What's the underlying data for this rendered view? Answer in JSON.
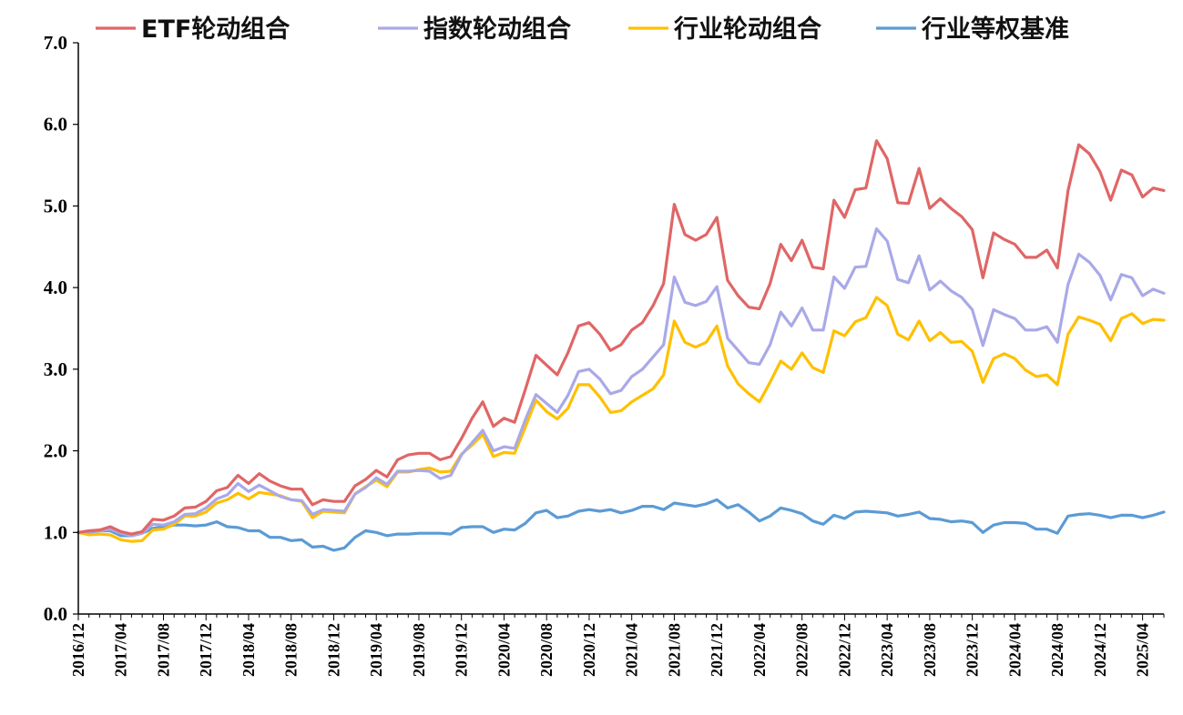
{
  "chart_data": {
    "type": "line",
    "title": "",
    "xlabel": "",
    "ylabel": "",
    "ylim": [
      0,
      7
    ],
    "yticks": [
      "0.0",
      "1.0",
      "2.0",
      "3.0",
      "4.0",
      "5.0",
      "6.0",
      "7.0"
    ],
    "grid": false,
    "legend_position": "top",
    "xtick_labels": [
      "2016/12",
      "2017/04",
      "2017/08",
      "2017/12",
      "2018/04",
      "2018/08",
      "2018/12",
      "2019/04",
      "2019/08",
      "2019/12",
      "2020/04",
      "2020/08",
      "2020/12",
      "2021/04",
      "2021/08",
      "2021/12",
      "2022/04",
      "2022/08",
      "2022/12",
      "2023/04",
      "2023/08",
      "2023/12",
      "2024/04",
      "2024/08",
      "2024/12",
      "2025/04"
    ],
    "x_start": "2016/12",
    "x_step": "1 month",
    "series": [
      {
        "name": "ETF轮动组合",
        "color": "#e06666",
        "values": [
          1.0,
          1.02,
          1.03,
          1.07,
          1.01,
          0.98,
          1.01,
          1.16,
          1.15,
          1.2,
          1.3,
          1.31,
          1.38,
          1.51,
          1.55,
          1.7,
          1.6,
          1.72,
          1.63,
          1.57,
          1.53,
          1.53,
          1.34,
          1.4,
          1.38,
          1.38,
          1.57,
          1.65,
          1.76,
          1.68,
          1.89,
          1.95,
          1.97,
          1.97,
          1.89,
          1.93,
          2.15,
          2.4,
          2.6,
          2.3,
          2.4,
          2.35,
          2.75,
          3.17,
          3.05,
          2.93,
          3.2,
          3.53,
          3.57,
          3.43,
          3.23,
          3.3,
          3.48,
          3.57,
          3.78,
          4.05,
          5.02,
          4.65,
          4.58,
          4.65,
          4.86,
          4.09,
          3.9,
          3.76,
          3.74,
          4.05,
          4.53,
          4.33,
          4.58,
          4.25,
          4.23,
          5.07,
          4.86,
          5.2,
          5.22,
          5.8,
          5.58,
          5.04,
          5.03,
          5.46,
          4.97,
          5.09,
          4.97,
          4.87,
          4.71,
          4.12,
          4.67,
          4.59,
          4.53,
          4.37,
          4.37,
          4.46,
          4.24,
          5.19,
          5.75,
          5.64,
          5.42,
          5.07,
          5.44,
          5.38,
          5.11,
          5.22,
          5.19
        ]
      },
      {
        "name": "指数轮动组合",
        "color": "#a9a9e8",
        "values": [
          1.0,
          1.01,
          1.02,
          1.04,
          0.99,
          0.96,
          0.99,
          1.1,
          1.09,
          1.13,
          1.22,
          1.23,
          1.3,
          1.41,
          1.46,
          1.6,
          1.5,
          1.58,
          1.51,
          1.44,
          1.4,
          1.39,
          1.22,
          1.28,
          1.27,
          1.26,
          1.47,
          1.55,
          1.67,
          1.59,
          1.75,
          1.75,
          1.76,
          1.75,
          1.66,
          1.7,
          1.95,
          2.1,
          2.25,
          2.0,
          2.05,
          2.03,
          2.38,
          2.69,
          2.58,
          2.47,
          2.68,
          2.97,
          3.0,
          2.88,
          2.7,
          2.74,
          2.91,
          3.0,
          3.15,
          3.3,
          4.13,
          3.82,
          3.78,
          3.83,
          4.01,
          3.38,
          3.23,
          3.08,
          3.06,
          3.3,
          3.7,
          3.53,
          3.75,
          3.48,
          3.48,
          4.13,
          3.99,
          4.25,
          4.26,
          4.72,
          4.57,
          4.1,
          4.06,
          4.39,
          3.97,
          4.08,
          3.96,
          3.88,
          3.73,
          3.29,
          3.73,
          3.67,
          3.62,
          3.48,
          3.48,
          3.52,
          3.33,
          4.04,
          4.41,
          4.31,
          4.15,
          3.85,
          4.16,
          4.12,
          3.9,
          3.98,
          3.93
        ]
      },
      {
        "name": "行业轮动组合",
        "color": "#ffc000",
        "values": [
          1.0,
          0.97,
          0.98,
          0.97,
          0.91,
          0.89,
          0.9,
          1.03,
          1.04,
          1.1,
          1.2,
          1.2,
          1.25,
          1.36,
          1.4,
          1.48,
          1.41,
          1.49,
          1.47,
          1.45,
          1.4,
          1.38,
          1.18,
          1.26,
          1.25,
          1.24,
          1.47,
          1.56,
          1.64,
          1.56,
          1.74,
          1.74,
          1.77,
          1.79,
          1.74,
          1.75,
          1.96,
          2.07,
          2.2,
          1.93,
          1.98,
          1.97,
          2.29,
          2.62,
          2.48,
          2.39,
          2.52,
          2.81,
          2.81,
          2.66,
          2.47,
          2.49,
          2.6,
          2.68,
          2.76,
          2.93,
          3.59,
          3.33,
          3.27,
          3.33,
          3.53,
          3.04,
          2.82,
          2.7,
          2.6,
          2.84,
          3.1,
          3.0,
          3.2,
          3.02,
          2.96,
          3.47,
          3.41,
          3.58,
          3.63,
          3.88,
          3.78,
          3.43,
          3.36,
          3.59,
          3.35,
          3.45,
          3.33,
          3.34,
          3.22,
          2.84,
          3.13,
          3.19,
          3.13,
          2.99,
          2.91,
          2.93,
          2.81,
          3.43,
          3.64,
          3.6,
          3.55,
          3.35,
          3.62,
          3.68,
          3.56,
          3.61,
          3.6
        ]
      },
      {
        "name": "行业等权基准",
        "color": "#5b9bd5",
        "values": [
          1.0,
          1.0,
          1.02,
          1.02,
          0.96,
          0.96,
          0.99,
          1.05,
          1.07,
          1.09,
          1.09,
          1.08,
          1.09,
          1.13,
          1.07,
          1.06,
          1.02,
          1.02,
          0.94,
          0.94,
          0.9,
          0.91,
          0.82,
          0.83,
          0.78,
          0.81,
          0.94,
          1.02,
          1.0,
          0.96,
          0.98,
          0.98,
          0.99,
          0.99,
          0.99,
          0.98,
          1.06,
          1.07,
          1.07,
          1.0,
          1.04,
          1.03,
          1.11,
          1.24,
          1.27,
          1.18,
          1.2,
          1.26,
          1.28,
          1.26,
          1.28,
          1.24,
          1.27,
          1.32,
          1.32,
          1.28,
          1.36,
          1.34,
          1.32,
          1.35,
          1.4,
          1.3,
          1.34,
          1.25,
          1.14,
          1.2,
          1.3,
          1.27,
          1.23,
          1.14,
          1.1,
          1.21,
          1.17,
          1.25,
          1.26,
          1.25,
          1.24,
          1.2,
          1.22,
          1.25,
          1.17,
          1.16,
          1.13,
          1.14,
          1.12,
          1.0,
          1.09,
          1.12,
          1.12,
          1.11,
          1.04,
          1.04,
          0.99,
          1.2,
          1.22,
          1.23,
          1.21,
          1.18,
          1.21,
          1.21,
          1.18,
          1.21,
          1.25
        ]
      }
    ]
  }
}
